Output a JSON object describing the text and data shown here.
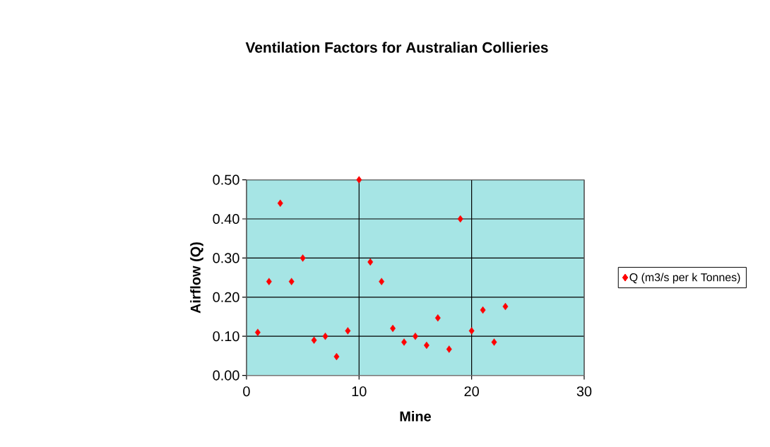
{
  "chart_data": {
    "type": "scatter",
    "title": "Ventilation Factors for Australian Collieries",
    "xlabel": "Mine",
    "ylabel": "Airflow (Q)",
    "x": [
      1,
      2,
      3,
      4,
      5,
      6,
      7,
      8,
      9,
      10,
      11,
      12,
      13,
      14,
      15,
      16,
      17,
      18,
      19,
      20,
      21,
      22,
      23
    ],
    "series": [
      {
        "name": "Q (m3/s per k Tonnes)",
        "color": "#ff0000",
        "values": [
          0.11,
          0.24,
          0.44,
          0.24,
          0.3,
          0.09,
          0.1,
          0.048,
          0.114,
          0.5,
          0.29,
          0.24,
          0.12,
          0.085,
          0.1,
          0.077,
          0.147,
          0.067,
          0.4,
          0.114,
          0.167,
          0.085,
          0.176
        ]
      }
    ],
    "xlim": [
      0,
      30
    ],
    "ylim": [
      0,
      0.5
    ],
    "xticks": [
      0,
      10,
      20,
      30
    ],
    "yticks": [
      {
        "value": 0,
        "label": "0.00"
      },
      {
        "value": 0.1,
        "label": "0.10"
      },
      {
        "value": 0.2,
        "label": "0.20"
      },
      {
        "value": 0.3,
        "label": "0.30"
      },
      {
        "value": 0.4,
        "label": "0.40"
      },
      {
        "value": 0.5,
        "label": "0.50"
      }
    ],
    "grid": true,
    "legend": "right",
    "marker": "diamond"
  }
}
